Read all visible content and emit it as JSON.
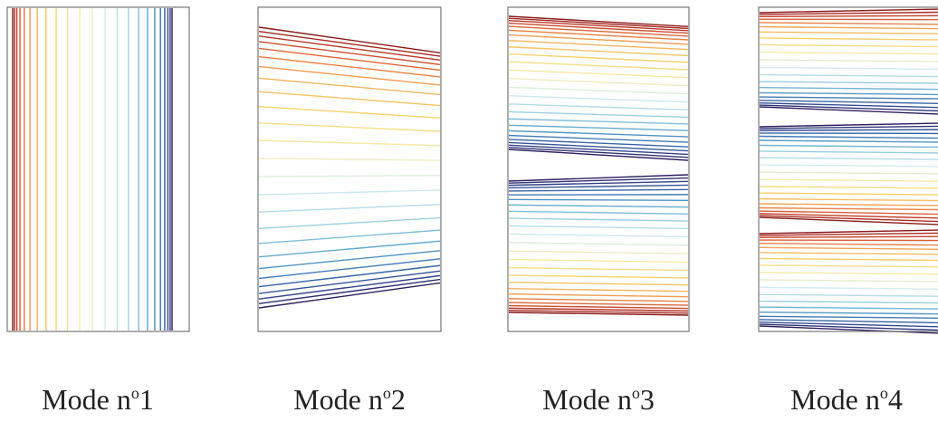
{
  "palette": [
    "#8b1a1a",
    "#c0392b",
    "#e8743b",
    "#f4b25b",
    "#f6d46e",
    "#f5ecb0",
    "#d7ecf0",
    "#9fd2e0",
    "#5ea8cc",
    "#3a6fb0",
    "#34478e",
    "#2e1f5e"
  ],
  "line_color_cycle": "dark-red → orange → yellow → light-blue → blue → dark-purple",
  "modes": [
    {
      "label_prefix": "Mode n",
      "label_sup": "o",
      "label_number": "1",
      "orientation": "vertical",
      "line_count": 23,
      "description_kind": "vertical-isolines"
    },
    {
      "label_prefix": "Mode n",
      "label_sup": "o",
      "label_number": "2",
      "orientation": "horizontal",
      "line_count": 26,
      "bands": 1,
      "description_kind": "horizontal-isolines-fan"
    },
    {
      "label_prefix": "Mode n",
      "label_sup": "o",
      "label_number": "3",
      "orientation": "horizontal",
      "line_count": 52,
      "bands": 2,
      "description_kind": "horizontal-isolines-two-bands"
    },
    {
      "label_prefix": "Mode n",
      "label_sup": "o",
      "label_number": "4",
      "orientation": "horizontal",
      "line_count": 64,
      "bands": 3,
      "description_kind": "horizontal-isolines-three-bands"
    }
  ]
}
